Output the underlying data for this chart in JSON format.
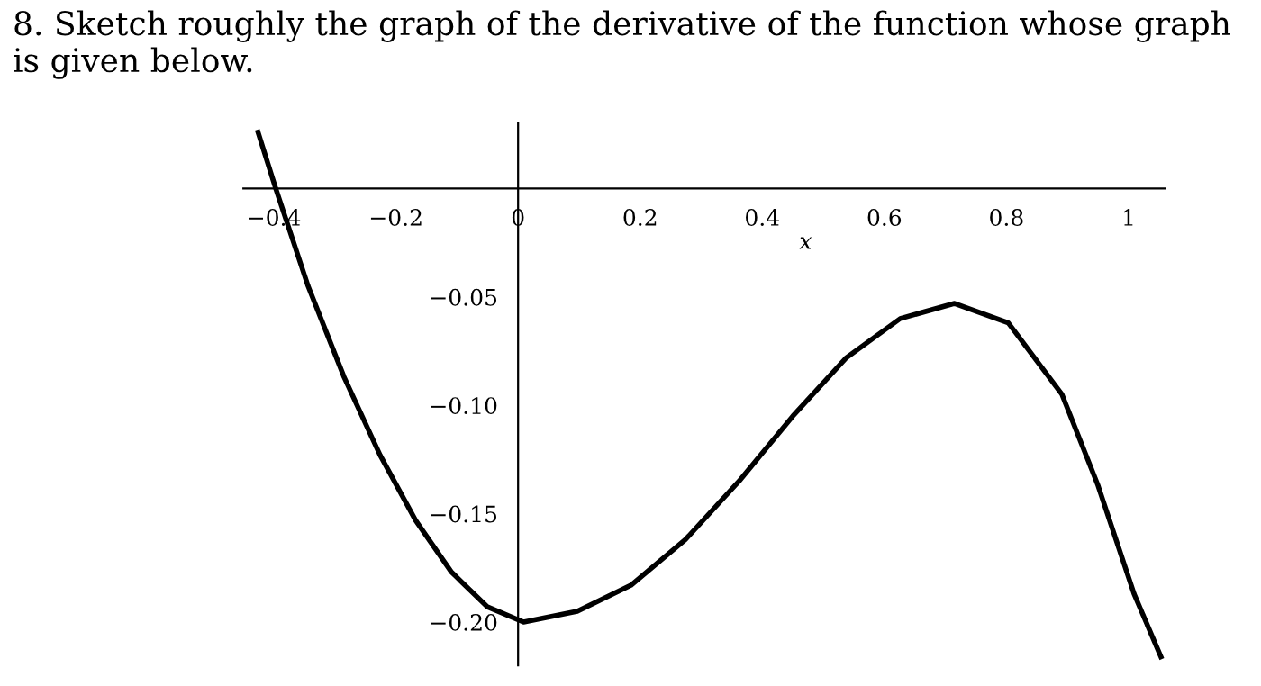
{
  "chart_data": {
    "type": "line",
    "title": "8. Sketch roughly the graph of the derivative of the function whose graph is given below.",
    "xlabel": "x",
    "x": [
      -0.426,
      -0.397,
      -0.344,
      -0.285,
      -0.226,
      -0.168,
      -0.109,
      -0.05,
      0.009,
      0.097,
      0.185,
      0.274,
      0.362,
      0.45,
      0.538,
      0.626,
      0.715,
      0.803,
      0.891,
      0.95,
      1.009,
      1.053
    ],
    "series": [
      {
        "color": "#000000",
        "values": [
          0.026,
          0,
          -0.045,
          -0.087,
          -0.123,
          -0.153,
          -0.177,
          -0.193,
          -0.2,
          -0.195,
          -0.183,
          -0.162,
          -0.135,
          -0.105,
          -0.078,
          -0.06,
          -0.053,
          -0.062,
          -0.095,
          -0.137,
          -0.187,
          -0.216
        ]
      }
    ],
    "xlim": [
      -0.45,
      1.06
    ],
    "ylim": [
      -0.22,
      0.03
    ],
    "xticks": [
      {
        "value": -0.4,
        "label": "−0.4"
      },
      {
        "value": -0.2,
        "label": "−0.2"
      },
      0,
      0.2,
      0.4,
      0.6,
      0.8,
      1
    ],
    "yticks": [
      {
        "value": -0.05,
        "label": "−0.05"
      },
      {
        "value": -0.1,
        "label": "−0.10"
      },
      {
        "value": -0.15,
        "label": "−0.15"
      },
      {
        "value": -0.2,
        "label": "−0.20"
      }
    ],
    "grid": false,
    "legend": false,
    "marker": "none",
    "line_style": "solid"
  }
}
